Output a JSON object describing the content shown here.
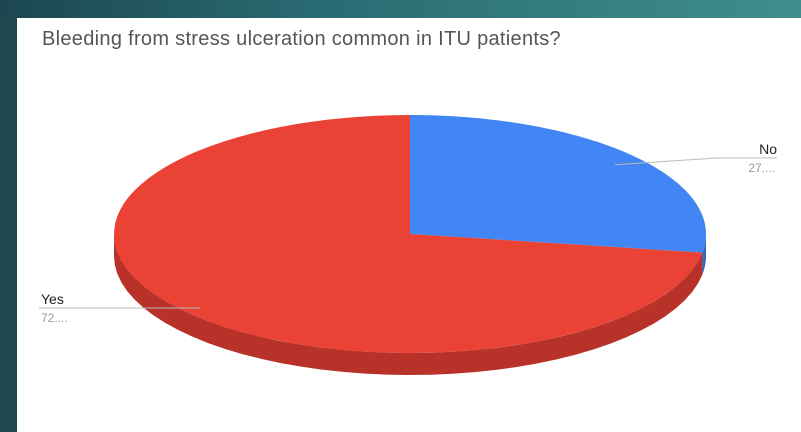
{
  "chart_data": {
    "type": "pie",
    "title": "Bleeding from stress ulceration common in ITU patients?",
    "three_d": true,
    "slices": [
      {
        "label": "No",
        "value_text": "27....",
        "value": 27.5,
        "color": "#4285f4",
        "side_color": "#3367c4"
      },
      {
        "label": "Yes",
        "value_text": "72....",
        "value": 72.5,
        "color": "#ea4335",
        "side_color": "#b8322a"
      }
    ]
  }
}
